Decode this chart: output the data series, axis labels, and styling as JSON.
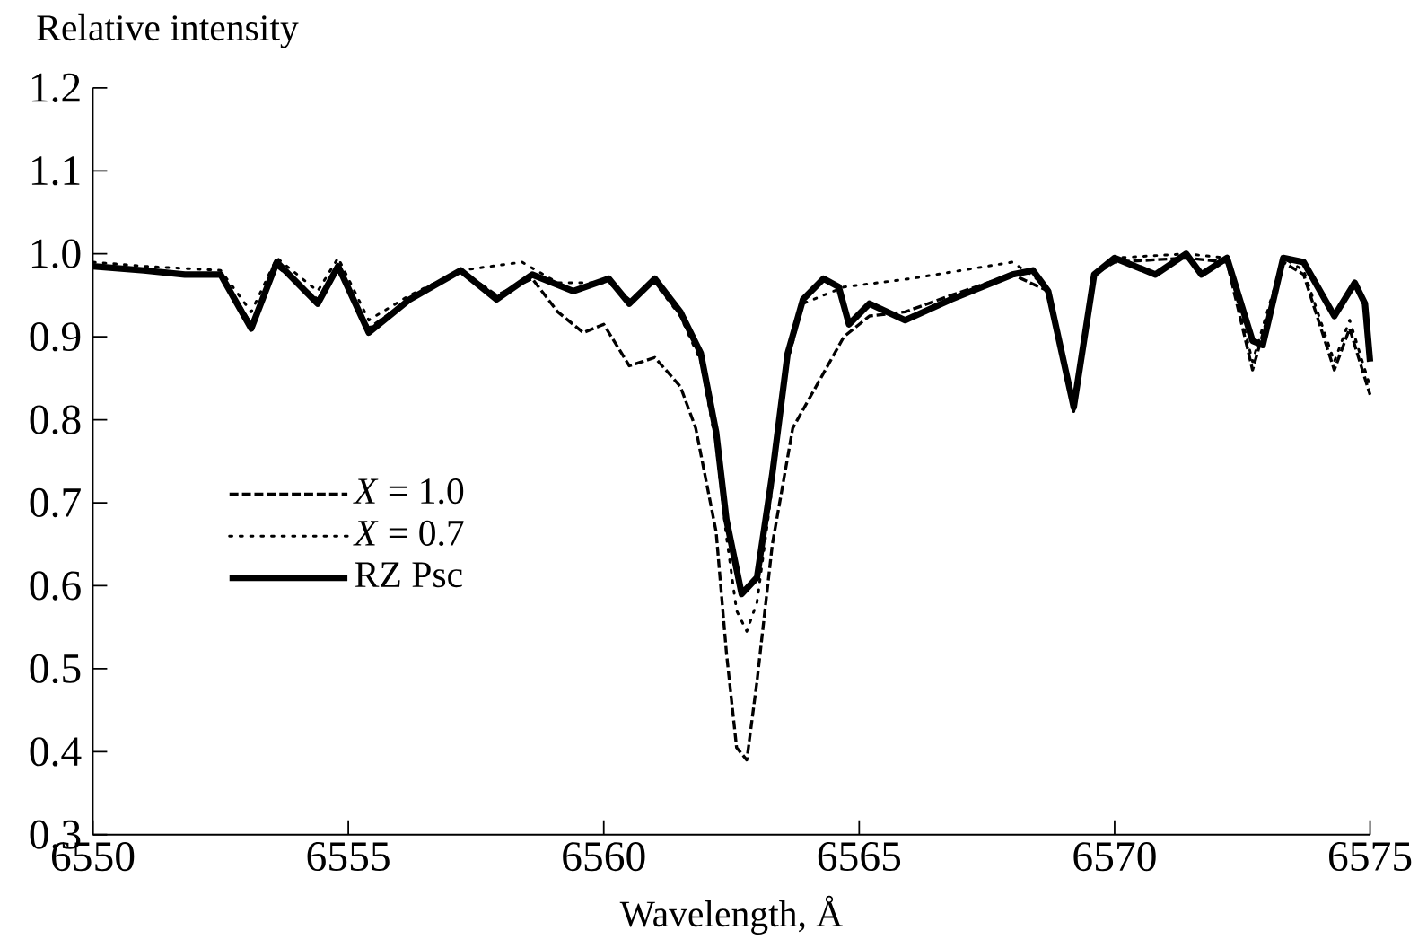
{
  "chart_data": {
    "type": "line",
    "xlabel": "Wavelength, Å",
    "ylabel": "Relative intensity",
    "xlim": [
      6550,
      6575
    ],
    "ylim": [
      0.3,
      1.2
    ],
    "xticks": [
      6550,
      6555,
      6560,
      6565,
      6570,
      6575
    ],
    "yticks": [
      0.3,
      0.4,
      0.5,
      0.6,
      0.7,
      0.8,
      0.9,
      {
        "value": 1.0,
        "label": "1.0"
      },
      1.1,
      1.2
    ],
    "legend": "left",
    "series": [
      {
        "name": "*X* = 1.0",
        "color": "#000000",
        "line_style": "dashed",
        "x": [
          6550,
          6551,
          6551.8,
          6552.5,
          6553.1,
          6553.6,
          6554.4,
          6554.8,
          6555.4,
          6556.2,
          6557.2,
          6557.9,
          6558.6,
          6559.1,
          6559.6,
          6560.0,
          6560.5,
          6561.0,
          6561.5,
          6561.8,
          6562.2,
          6562.4,
          6562.6,
          6562.8,
          6563.0,
          6563.3,
          6563.7,
          6564.2,
          6564.7,
          6565.2,
          6565.9,
          6566.8,
          6568.0,
          6568.7,
          6569.2,
          6569.6,
          6570.0,
          6571.4,
          6572.2,
          6572.7,
          6573.3,
          6573.7,
          6574.3,
          6574.6,
          6575
        ],
        "values": [
          0.985,
          0.98,
          0.975,
          0.975,
          0.915,
          0.985,
          0.945,
          0.98,
          0.91,
          0.945,
          0.98,
          0.95,
          0.97,
          0.93,
          0.905,
          0.915,
          0.865,
          0.875,
          0.84,
          0.79,
          0.665,
          0.52,
          0.405,
          0.39,
          0.485,
          0.65,
          0.79,
          0.845,
          0.9,
          0.925,
          0.93,
          0.95,
          0.975,
          0.955,
          0.81,
          0.975,
          0.99,
          0.995,
          0.99,
          0.86,
          0.99,
          0.975,
          0.86,
          0.91,
          0.83
        ]
      },
      {
        "name": "*X* = 0.7",
        "color": "#000000",
        "line_style": "dotted",
        "x": [
          6550,
          6551,
          6552.5,
          6553.1,
          6553.6,
          6554.4,
          6554.8,
          6555.4,
          6556.2,
          6557.2,
          6558.4,
          6559.1,
          6560.1,
          6560.5,
          6561.0,
          6561.5,
          6561.9,
          6562.2,
          6562.4,
          6562.6,
          6562.8,
          6563.0,
          6563.3,
          6563.6,
          6563.9,
          6564.7,
          6566.0,
          6567.0,
          6568.0,
          6568.7,
          6569.2,
          6569.6,
          6570.0,
          6571.4,
          6572.2,
          6572.7,
          6573.3,
          6573.7,
          6574.3,
          6574.6,
          6575
        ],
        "values": [
          0.99,
          0.985,
          0.98,
          0.93,
          0.995,
          0.955,
          0.995,
          0.92,
          0.95,
          0.98,
          0.99,
          0.965,
          0.965,
          0.945,
          0.965,
          0.925,
          0.87,
          0.77,
          0.66,
          0.57,
          0.545,
          0.58,
          0.72,
          0.87,
          0.94,
          0.96,
          0.97,
          0.98,
          0.99,
          0.96,
          0.81,
          0.975,
          0.995,
          1.0,
          0.995,
          0.87,
          0.995,
          0.98,
          0.87,
          0.92,
          0.84
        ]
      },
      {
        "name": "RZ Psc",
        "color": "#000000",
        "line_style": "solid",
        "x": [
          6550,
          6551,
          6551.8,
          6552.5,
          6553.1,
          6553.6,
          6554.4,
          6554.8,
          6555.4,
          6556.2,
          6557.2,
          6557.9,
          6558.6,
          6559.4,
          6560.1,
          6560.5,
          6561.0,
          6561.5,
          6561.9,
          6562.2,
          6562.4,
          6562.7,
          6563.0,
          6563.3,
          6563.6,
          6563.9,
          6564.3,
          6564.6,
          6564.8,
          6565.2,
          6565.9,
          6566.8,
          6567.4,
          6568.0,
          6568.4,
          6568.7,
          6569.2,
          6569.6,
          6570.0,
          6570.8,
          6571.4,
          6571.7,
          6572.2,
          6572.7,
          6572.9,
          6573.3,
          6573.7,
          6574.3,
          6574.7,
          6574.9,
          6575
        ],
        "values": [
          0.985,
          0.98,
          0.975,
          0.975,
          0.91,
          0.99,
          0.94,
          0.985,
          0.905,
          0.945,
          0.98,
          0.945,
          0.975,
          0.955,
          0.97,
          0.94,
          0.97,
          0.93,
          0.88,
          0.785,
          0.68,
          0.59,
          0.61,
          0.735,
          0.88,
          0.945,
          0.97,
          0.96,
          0.915,
          0.94,
          0.92,
          0.945,
          0.96,
          0.975,
          0.98,
          0.955,
          0.815,
          0.975,
          0.995,
          0.975,
          1.0,
          0.975,
          0.995,
          0.895,
          0.89,
          0.995,
          0.99,
          0.925,
          0.965,
          0.94,
          0.87
        ]
      }
    ]
  }
}
